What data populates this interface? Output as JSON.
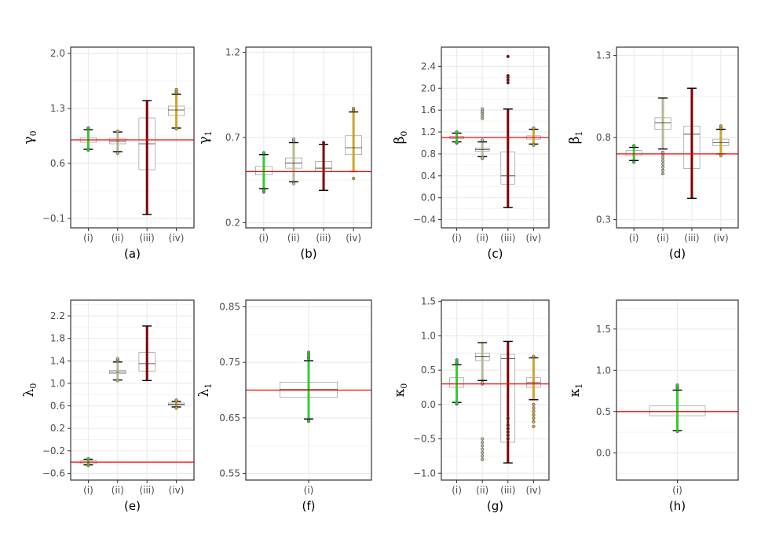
{
  "chart_data": [
    {
      "type": "box",
      "panel_label": "(a)",
      "ylabel": "γ",
      "ylabel_sub": "0",
      "categories": [
        "(i)",
        "(ii)",
        "(iii)",
        "(iv)"
      ],
      "ylim": [
        -0.22,
        2.08
      ],
      "yticks": [
        -0.1,
        0.6,
        1.3,
        2.0
      ],
      "tick_decimals": 1,
      "reference_line": 0.9,
      "boxes": [
        {
          "q1": 0.87,
          "median": 0.9,
          "q3": 0.93,
          "lo": 0.78,
          "hi": 1.03,
          "out_lo": [
            0.77
          ],
          "out_hi": [
            1.04,
            1.05
          ]
        },
        {
          "q1": 0.85,
          "median": 0.88,
          "q3": 0.92,
          "lo": 0.75,
          "hi": 1.0,
          "out_lo": [
            0.73
          ],
          "out_hi": [
            1.01
          ]
        },
        {
          "q1": 0.52,
          "median": 0.85,
          "q3": 1.18,
          "lo": -0.05,
          "hi": 1.4,
          "out_lo": [],
          "out_hi": []
        },
        {
          "q1": 1.21,
          "median": 1.28,
          "q3": 1.33,
          "lo": 1.05,
          "hi": 1.48,
          "out_lo": [
            1.04
          ],
          "out_hi": [
            1.5,
            1.52,
            1.54
          ]
        }
      ]
    },
    {
      "type": "box",
      "panel_label": "(b)",
      "ylabel": "γ",
      "ylabel_sub": "1",
      "categories": [
        "(i)",
        "(ii)",
        "(iii)",
        "(iv)"
      ],
      "ylim": [
        0.17,
        1.23
      ],
      "yticks": [
        0.2,
        0.7,
        1.2
      ],
      "tick_decimals": 1,
      "reference_line": 0.5,
      "boxes": [
        {
          "q1": 0.48,
          "median": 0.5,
          "q3": 0.53,
          "lo": 0.4,
          "hi": 0.6,
          "out_lo": [
            0.38,
            0.39
          ],
          "out_hi": [
            0.61
          ]
        },
        {
          "q1": 0.52,
          "median": 0.55,
          "q3": 0.58,
          "lo": 0.44,
          "hi": 0.67,
          "out_lo": [
            0.43
          ],
          "out_hi": [
            0.68,
            0.69
          ]
        },
        {
          "q1": 0.5,
          "median": 0.52,
          "q3": 0.56,
          "lo": 0.39,
          "hi": 0.66,
          "out_lo": [],
          "out_hi": [
            0.67
          ]
        },
        {
          "q1": 0.6,
          "median": 0.64,
          "q3": 0.71,
          "lo": 0.5,
          "hi": 0.85,
          "out_lo": [
            0.46
          ],
          "out_hi": [
            0.86,
            0.87
          ]
        }
      ]
    },
    {
      "type": "box",
      "panel_label": "(c)",
      "ylabel": "β",
      "ylabel_sub": "0",
      "categories": [
        "(i)",
        "(ii)",
        "(iii)",
        "(iv)"
      ],
      "ylim": [
        -0.55,
        2.75
      ],
      "yticks": [
        -0.4,
        0.0,
        0.4,
        0.8,
        1.2,
        1.6,
        2.0,
        2.4
      ],
      "tick_decimals": 1,
      "reference_line": 1.1,
      "boxes": [
        {
          "q1": 1.08,
          "median": 1.1,
          "q3": 1.12,
          "lo": 1.02,
          "hi": 1.18,
          "out_lo": [
            1.0,
            1.01
          ],
          "out_hi": [
            1.19,
            1.2
          ]
        },
        {
          "q1": 0.85,
          "median": 0.88,
          "q3": 0.91,
          "lo": 0.75,
          "hi": 1.02,
          "out_lo": [
            0.72,
            0.73
          ],
          "out_hi": [
            1.05,
            1.45,
            1.5,
            1.55,
            1.58,
            1.62
          ]
        },
        {
          "q1": 0.25,
          "median": 0.4,
          "q3": 0.84,
          "lo": -0.18,
          "hi": 1.62,
          "out_lo": [],
          "out_hi": [
            2.1,
            2.15,
            2.2,
            2.23,
            2.58
          ]
        },
        {
          "q1": 1.07,
          "median": 1.1,
          "q3": 1.13,
          "lo": 0.98,
          "hi": 1.25,
          "out_lo": [
            0.96
          ],
          "out_hi": [
            1.27
          ]
        }
      ]
    },
    {
      "type": "box",
      "panel_label": "(d)",
      "ylabel": "β",
      "ylabel_sub": "1",
      "categories": [
        "(i)",
        "(ii)",
        "(iii)",
        "(iv)"
      ],
      "ylim": [
        0.25,
        1.35
      ],
      "yticks": [
        0.3,
        0.8,
        1.3
      ],
      "tick_decimals": 1,
      "reference_line": 0.7,
      "boxes": [
        {
          "q1": 0.69,
          "median": 0.7,
          "q3": 0.72,
          "lo": 0.66,
          "hi": 0.74,
          "out_lo": [
            0.65
          ],
          "out_hi": [
            0.75
          ]
        },
        {
          "q1": 0.85,
          "median": 0.89,
          "q3": 0.92,
          "lo": 0.73,
          "hi": 1.04,
          "out_lo": [
            0.58,
            0.6,
            0.62,
            0.64,
            0.66,
            0.68,
            0.7,
            0.71
          ],
          "out_hi": []
        },
        {
          "q1": 0.61,
          "median": 0.82,
          "q3": 0.87,
          "lo": 0.43,
          "hi": 1.1,
          "out_lo": [],
          "out_hi": []
        },
        {
          "q1": 0.75,
          "median": 0.77,
          "q3": 0.79,
          "lo": 0.7,
          "hi": 0.85,
          "out_lo": [
            0.69
          ],
          "out_hi": [
            0.86,
            0.87
          ]
        }
      ]
    },
    {
      "type": "box",
      "panel_label": "(e)",
      "ylabel": "λ",
      "ylabel_sub": "0",
      "categories": [
        "(i)",
        "(ii)",
        "(iii)",
        "(iv)"
      ],
      "ylim": [
        -0.72,
        2.48
      ],
      "yticks": [
        -0.6,
        -0.2,
        0.2,
        0.6,
        1.0,
        1.4,
        1.8,
        2.2
      ],
      "tick_decimals": 1,
      "reference_line": -0.4,
      "boxes": [
        {
          "q1": -0.42,
          "median": -0.4,
          "q3": -0.38,
          "lo": -0.45,
          "hi": -0.35,
          "out_lo": [
            -0.46
          ],
          "out_hi": [
            -0.34
          ]
        },
        {
          "q1": 1.17,
          "median": 1.2,
          "q3": 1.23,
          "lo": 1.06,
          "hi": 1.38,
          "out_lo": [
            1.05
          ],
          "out_hi": [
            1.4,
            1.42,
            1.44
          ]
        },
        {
          "q1": 1.22,
          "median": 1.35,
          "q3": 1.55,
          "lo": 1.05,
          "hi": 2.02,
          "out_lo": [],
          "out_hi": []
        },
        {
          "q1": 0.61,
          "median": 0.63,
          "q3": 0.65,
          "lo": 0.58,
          "hi": 0.68,
          "out_lo": [
            0.56
          ],
          "out_hi": [
            0.69,
            0.7
          ]
        }
      ]
    },
    {
      "type": "box",
      "panel_label": "(f)",
      "ylabel": "λ",
      "ylabel_sub": "1",
      "categories": [
        "(i)"
      ],
      "ylim": [
        0.538,
        0.862
      ],
      "yticks": [
        0.55,
        0.65,
        0.75,
        0.85
      ],
      "tick_decimals": 2,
      "reference_line": 0.7,
      "boxes": [
        {
          "q1": 0.687,
          "median": 0.701,
          "q3": 0.714,
          "lo": 0.648,
          "hi": 0.753,
          "out_lo": [
            0.645,
            0.644
          ],
          "out_hi": [
            0.757,
            0.76,
            0.764,
            0.768
          ]
        }
      ]
    },
    {
      "type": "box",
      "panel_label": "(g)",
      "ylabel": "κ",
      "ylabel_sub": "0",
      "categories": [
        "(i)",
        "(ii)",
        "(iii)",
        "(iv)"
      ],
      "ylim": [
        -1.1,
        1.52
      ],
      "yticks": [
        -1.0,
        -0.5,
        0.0,
        0.5,
        1.0,
        1.5
      ],
      "tick_decimals": 1,
      "reference_line": 0.3,
      "boxes": [
        {
          "q1": 0.25,
          "median": 0.3,
          "q3": 0.39,
          "lo": 0.03,
          "hi": 0.58,
          "out_lo": [
            0.01,
            0.02
          ],
          "out_hi": [
            0.6,
            0.62,
            0.65
          ]
        },
        {
          "q1": 0.64,
          "median": 0.7,
          "q3": 0.75,
          "lo": 0.35,
          "hi": 0.9,
          "out_lo": [
            -0.5,
            -0.55,
            -0.6,
            -0.65,
            -0.7,
            -0.75,
            -0.8,
            0.3,
            0.32
          ],
          "out_hi": []
        },
        {
          "q1": -0.55,
          "median": 0.67,
          "q3": 0.73,
          "lo": -0.85,
          "hi": 0.92,
          "out_lo": [
            -0.2,
            -0.3,
            -0.35,
            -0.4,
            -0.45,
            -0.5
          ],
          "out_hi": []
        },
        {
          "q1": 0.25,
          "median": 0.32,
          "q3": 0.39,
          "lo": 0.07,
          "hi": 0.68,
          "out_lo": [
            -0.05,
            -0.1,
            -0.15,
            -0.2,
            -0.25,
            -0.32,
            0.0
          ],
          "out_hi": [
            0.7
          ]
        }
      ]
    },
    {
      "type": "box",
      "panel_label": "(h)",
      "ylabel": "κ",
      "ylabel_sub": "1",
      "categories": [
        "(i)"
      ],
      "ylim": [
        -0.33,
        1.85
      ],
      "yticks": [
        0.0,
        0.5,
        1.0,
        1.5
      ],
      "tick_decimals": 1,
      "reference_line": 0.5,
      "boxes": [
        {
          "q1": 0.45,
          "median": 0.5,
          "q3": 0.57,
          "lo": 0.27,
          "hi": 0.76,
          "out_lo": [
            0.26
          ],
          "out_hi": [
            0.78,
            0.8,
            0.82
          ]
        }
      ]
    }
  ]
}
